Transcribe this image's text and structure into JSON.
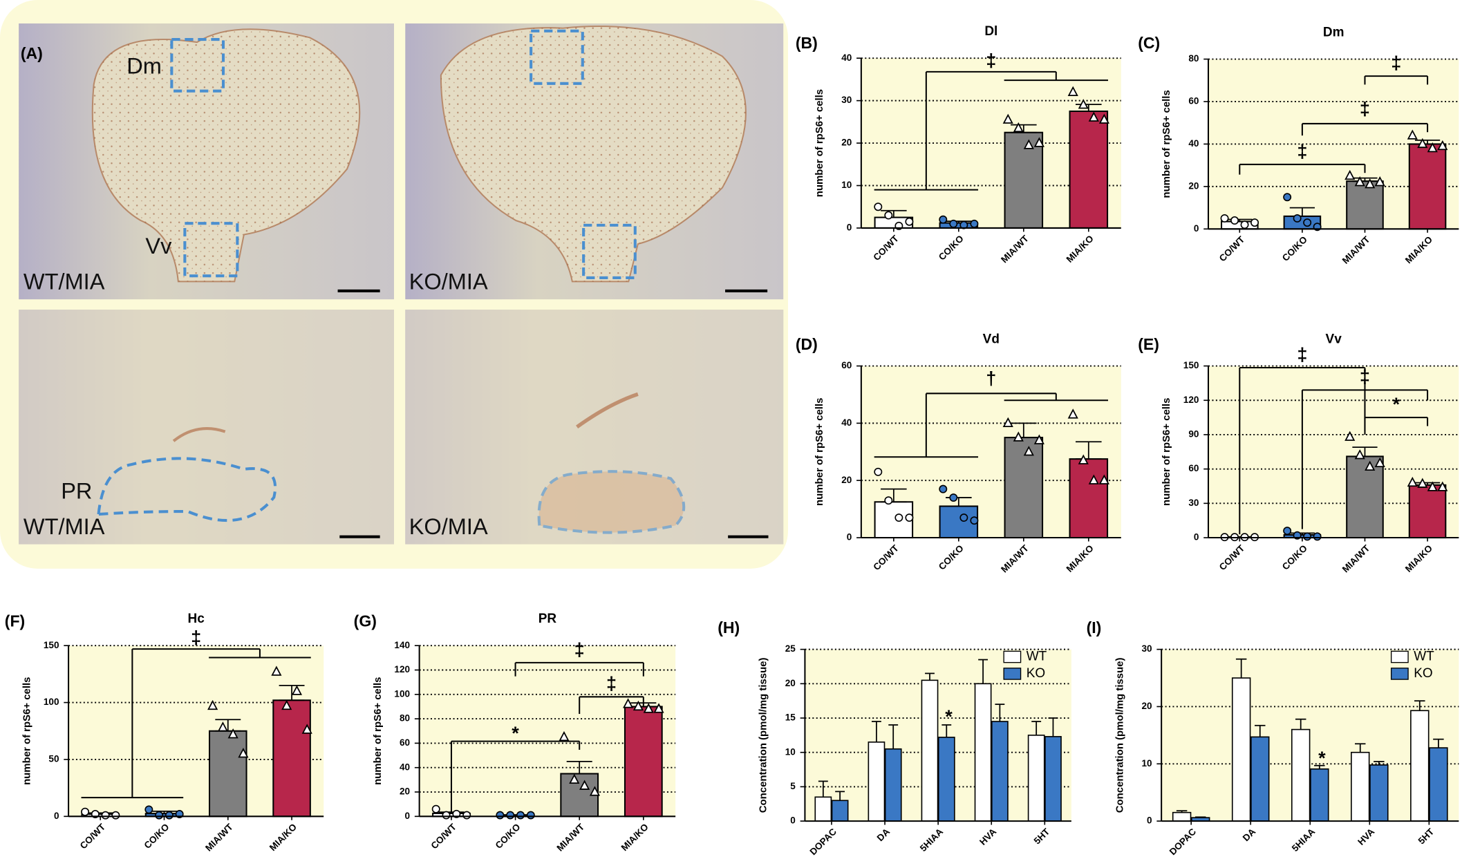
{
  "panel_a": {
    "label": "(A)",
    "images": [
      {
        "labels": [
          "Dm",
          "Vv",
          "WT/MIA"
        ]
      },
      {
        "labels": [
          "KO/MIA"
        ]
      },
      {
        "labels": [
          "PR",
          "WT/MIA"
        ]
      },
      {
        "labels": [
          "KO/MIA"
        ]
      }
    ]
  },
  "chart_data": [
    {
      "type": "bar",
      "panel_label": "(B)",
      "title": "Dl",
      "y_label": "number of rpS6+ cells",
      "categories": [
        "CO/WT",
        "CO/KO",
        "MIA/WT",
        "MIA/KO"
      ],
      "values": [
        2.5,
        1.2,
        22.5,
        27.5
      ],
      "errors": [
        1.6,
        0.4,
        1.8,
        1.6
      ],
      "points": [
        [
          5,
          3,
          0.5,
          1.5
        ],
        [
          2,
          1,
          0.7,
          1
        ],
        [
          25.5,
          23.5,
          19.5,
          20
        ],
        [
          32,
          29,
          26,
          25.5
        ]
      ],
      "markers": [
        "circle",
        "circle",
        "triangle",
        "triangle"
      ],
      "colors": [
        "#ffffff",
        "#3a78c4",
        "#7f7f7f",
        "#b7264b"
      ],
      "ylim": [
        0,
        40
      ],
      "yticks": [
        0,
        10,
        20,
        30,
        40
      ],
      "grid": true,
      "annotations": [
        "‡"
      ]
    },
    {
      "type": "bar",
      "panel_label": "(C)",
      "title": "Dm",
      "y_label": "number of rpS6+ cells",
      "categories": [
        "CO/WT",
        "CO/KO",
        "MIA/WT",
        "MIA/KO"
      ],
      "values": [
        3.5,
        6,
        22.5,
        40
      ],
      "errors": [
        1,
        4,
        1.5,
        1.8
      ],
      "points": [
        [
          5,
          4,
          2,
          3
        ],
        [
          15,
          5,
          3,
          1
        ],
        [
          25,
          22,
          21,
          22
        ],
        [
          44,
          40,
          38,
          39
        ]
      ],
      "markers": [
        "circle",
        "circle",
        "triangle",
        "triangle"
      ],
      "colors": [
        "#ffffff",
        "#3a78c4",
        "#7f7f7f",
        "#b7264b"
      ],
      "ylim": [
        0,
        80
      ],
      "yticks": [
        0,
        20,
        40,
        60,
        80
      ],
      "grid": true,
      "annotations": [
        "‡",
        "‡",
        "‡"
      ]
    },
    {
      "type": "bar",
      "panel_label": "(D)",
      "title": "Vd",
      "y_label": "number of rpS6+ cells",
      "categories": [
        "CO/WT",
        "CO/KO",
        "MIA/WT",
        "MIA/KO"
      ],
      "values": [
        12.5,
        11,
        35,
        27.5
      ],
      "errors": [
        4.5,
        3,
        5,
        6
      ],
      "points": [
        [
          23,
          13,
          7,
          7
        ],
        [
          17,
          14,
          7,
          6
        ],
        [
          40,
          35,
          30,
          34
        ],
        [
          43,
          27,
          20,
          20
        ]
      ],
      "markers": [
        "circle",
        "circle",
        "triangle",
        "triangle"
      ],
      "colors": [
        "#ffffff",
        "#3a78c4",
        "#7f7f7f",
        "#b7264b"
      ],
      "ylim": [
        0,
        60
      ],
      "yticks": [
        0,
        20,
        40,
        60
      ],
      "grid": true,
      "annotations": [
        "†"
      ]
    },
    {
      "type": "bar",
      "panel_label": "(E)",
      "title": "Vv",
      "y_label": "number of rpS6+ cells",
      "categories": [
        "CO/WT",
        "CO/KO",
        "MIA/WT",
        "MIA/KO"
      ],
      "values": [
        0.5,
        2.5,
        71,
        46
      ],
      "errors": [
        0.3,
        1.5,
        8,
        2
      ],
      "points": [
        [
          0.5,
          0.5,
          0.5,
          0.5
        ],
        [
          6,
          2,
          1,
          1
        ],
        [
          88,
          72,
          62,
          65
        ],
        [
          48,
          47,
          44,
          44
        ]
      ],
      "markers": [
        "circle",
        "circle",
        "triangle",
        "triangle"
      ],
      "colors": [
        "#ffffff",
        "#3a78c4",
        "#7f7f7f",
        "#b7264b"
      ],
      "ylim": [
        0,
        150
      ],
      "yticks": [
        0,
        30,
        60,
        90,
        120,
        150
      ],
      "grid": true,
      "annotations": [
        "‡",
        "‡",
        "*"
      ]
    },
    {
      "type": "bar",
      "panel_label": "(F)",
      "title": "Hc",
      "y_label": "number of rpS6+ cells",
      "categories": [
        "CO/WT",
        "CO/KO",
        "MIA/WT",
        "MIA/KO"
      ],
      "values": [
        2,
        2.5,
        75,
        102
      ],
      "errors": [
        1,
        2,
        10,
        13
      ],
      "points": [
        [
          4,
          2,
          1,
          1
        ],
        [
          6,
          1,
          1,
          2
        ],
        [
          97,
          78,
          72,
          55
        ],
        [
          127,
          97,
          110,
          76
        ]
      ],
      "markers": [
        "circle",
        "circle",
        "triangle",
        "triangle"
      ],
      "colors": [
        "#ffffff",
        "#3a78c4",
        "#7f7f7f",
        "#b7264b"
      ],
      "ylim": [
        0,
        150
      ],
      "yticks": [
        0,
        50,
        100,
        150
      ],
      "grid": true,
      "annotations": [
        "‡"
      ]
    },
    {
      "type": "bar",
      "panel_label": "(G)",
      "title": "PR",
      "y_label": "number of rpS6+ cells",
      "categories": [
        "CO/WT",
        "CO/KO",
        "MIA/WT",
        "MIA/KO"
      ],
      "values": [
        2.5,
        1,
        35,
        90
      ],
      "errors": [
        1,
        0.3,
        10,
        3
      ],
      "points": [
        [
          6,
          1,
          2,
          1
        ],
        [
          1,
          1,
          1,
          1
        ],
        [
          65,
          30,
          25,
          20
        ],
        [
          92,
          90,
          88,
          88
        ]
      ],
      "markers": [
        "circle",
        "circle",
        "triangle",
        "triangle"
      ],
      "colors": [
        "#ffffff",
        "#3a78c4",
        "#7f7f7f",
        "#b7264b"
      ],
      "ylim": [
        0,
        140
      ],
      "yticks": [
        0,
        20,
        40,
        60,
        80,
        100,
        120,
        140
      ],
      "grid": true,
      "annotations": [
        "‡",
        "‡",
        "*"
      ]
    },
    {
      "type": "grouped_bar",
      "panel_label": "(H)",
      "y_label": "Concentration (pmol/mg tissue)",
      "categories": [
        "DOPAC",
        "DA",
        "5HIAA",
        "HVA",
        "5HT"
      ],
      "series": [
        {
          "name": "WT",
          "color": "#ffffff",
          "values": [
            3.5,
            11.5,
            20.5,
            20,
            12.5
          ],
          "errors": [
            2.3,
            3,
            1,
            3.5,
            2
          ]
        },
        {
          "name": "KO",
          "color": "#3a78c4",
          "values": [
            3,
            10.5,
            12.2,
            14.5,
            12.3
          ],
          "errors": [
            1.3,
            3.5,
            1.8,
            2.5,
            2.7
          ]
        }
      ],
      "ylim": [
        0,
        25
      ],
      "yticks": [
        0,
        5,
        10,
        15,
        20,
        25
      ],
      "grid": true,
      "legend": "top-right",
      "annotations": [
        "*"
      ]
    },
    {
      "type": "grouped_bar",
      "panel_label": "(I)",
      "y_label": "Concentration (pmol/mg tissue)",
      "categories": [
        "DOPAC",
        "DA",
        "5HIAA",
        "HVA",
        "5HT"
      ],
      "series": [
        {
          "name": "WT",
          "color": "#ffffff",
          "values": [
            1.5,
            25,
            16,
            12,
            19.3
          ],
          "errors": [
            0.3,
            3.3,
            1.8,
            1.5,
            1.7
          ]
        },
        {
          "name": "KO",
          "color": "#3a78c4",
          "values": [
            0.6,
            14.7,
            9.1,
            9.8,
            12.8
          ],
          "errors": [
            0.1,
            2,
            0.6,
            0.6,
            1.5
          ]
        }
      ],
      "ylim": [
        0,
        30
      ],
      "yticks": [
        0,
        10,
        20,
        30
      ],
      "grid": true,
      "legend": "top-right",
      "annotations": [
        "*"
      ]
    }
  ]
}
